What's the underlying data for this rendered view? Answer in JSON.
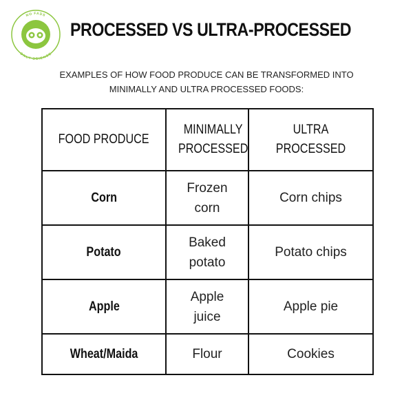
{
  "header": {
    "logo_top_text": "NO FADS",
    "logo_bottom_text": "ONLY SCIENCE",
    "title": "PROCESSED VS ULTRA-PROCESSED",
    "subtitle": [
      "EXAMPLES OF HOW FOOD PRODUCE CAN BE TRANSFORMED INTO",
      "MINIMALLY AND ULTRA PROCESSED FOODS:"
    ]
  },
  "table": {
    "columns": [
      "FOOD PRODUCE",
      "MINIMALLY PROCESSED",
      "ULTRA PROCESSED"
    ],
    "rows": [
      [
        "Corn",
        "Frozen corn",
        "Corn chips"
      ],
      [
        "Potato",
        "Baked potato",
        "Potato chips"
      ],
      [
        "Apple",
        "Apple juice",
        "Apple pie"
      ],
      [
        "Wheat/Maida",
        "Flour",
        "Cookies"
      ]
    ]
  }
}
